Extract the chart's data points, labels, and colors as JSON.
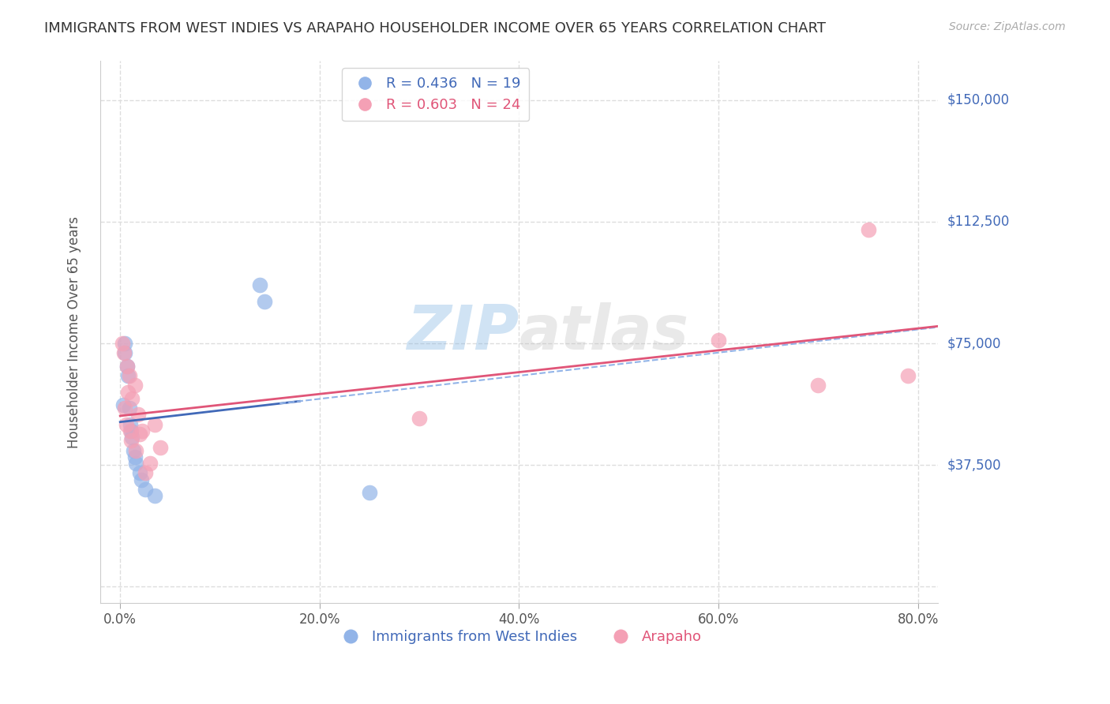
{
  "title": "IMMIGRANTS FROM WEST INDIES VS ARAPAHO HOUSEHOLDER INCOME OVER 65 YEARS CORRELATION CHART",
  "source": "Source: ZipAtlas.com",
  "ylabel": "Householder Income Over 65 years",
  "xlabel_ticks": [
    "0.0%",
    "20.0%",
    "40.0%",
    "60.0%",
    "80.0%"
  ],
  "xlabel_vals": [
    0.0,
    20.0,
    40.0,
    60.0,
    80.0
  ],
  "yticks": [
    0,
    37500,
    75000,
    112500,
    150000
  ],
  "ytick_labels": [
    "",
    "$37,500",
    "$75,000",
    "$112,500",
    "$150,000"
  ],
  "xlim": [
    -2,
    82
  ],
  "ylim": [
    -5000,
    162000
  ],
  "blue_R": 0.436,
  "blue_N": 19,
  "pink_R": 0.603,
  "pink_N": 24,
  "blue_label": "Immigrants from West Indies",
  "pink_label": "Arapaho",
  "blue_color": "#92b4e8",
  "pink_color": "#f4a0b5",
  "blue_line_color": "#4169b8",
  "pink_line_color": "#e05578",
  "dashed_line_color": "#92b4e8",
  "watermark_zip": "ZIP",
  "watermark_atlas": "atlas",
  "background_color": "#ffffff",
  "grid_color": "#dddddd",
  "blue_scatter_x": [
    0.3,
    0.5,
    0.5,
    0.7,
    0.8,
    0.9,
    1.0,
    1.1,
    1.2,
    1.3,
    1.5,
    1.6,
    2.0,
    2.1,
    2.5,
    3.5,
    14.0,
    14.5,
    25.0
  ],
  "blue_scatter_y": [
    56000,
    75000,
    72000,
    68000,
    65000,
    55000,
    50000,
    48000,
    46000,
    42000,
    40000,
    38000,
    35000,
    33000,
    30000,
    28000,
    93000,
    88000,
    29000
  ],
  "pink_scatter_x": [
    0.2,
    0.4,
    0.5,
    0.6,
    0.7,
    0.8,
    0.9,
    1.0,
    1.1,
    1.2,
    1.5,
    1.6,
    1.8,
    2.0,
    2.2,
    2.5,
    3.0,
    3.5,
    4.0,
    30.0,
    60.0,
    70.0,
    75.0,
    79.0
  ],
  "pink_scatter_y": [
    75000,
    72000,
    55000,
    50000,
    68000,
    60000,
    65000,
    48000,
    45000,
    58000,
    62000,
    42000,
    53000,
    47000,
    48000,
    35000,
    38000,
    50000,
    43000,
    52000,
    76000,
    62000,
    110000,
    65000
  ]
}
